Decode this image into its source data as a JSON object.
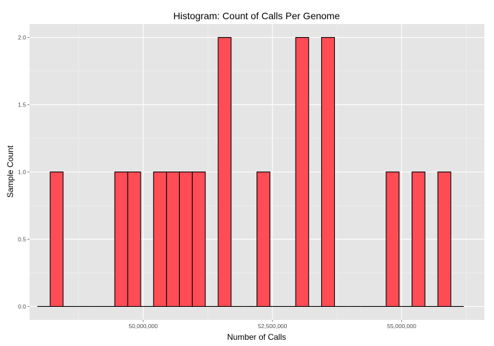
{
  "chart_data": {
    "type": "bar",
    "title": "Histogram: Count of Calls Per Genome",
    "xlabel": "Number of Calls",
    "ylabel": "Sample Count",
    "xlim": [
      47800000,
      56600000
    ],
    "ylim": [
      -0.1,
      2.1
    ],
    "x_ticks": [
      50000000,
      52500000,
      55000000
    ],
    "x_tick_labels": [
      "50,000,000",
      "52,500,000",
      "55,000,000"
    ],
    "y_ticks": [
      0,
      0.5,
      1,
      1.5,
      2
    ],
    "y_tick_labels": [
      "0.0",
      "0.5",
      "1.0",
      "1.5",
      "2.0"
    ],
    "bin_width": 250000,
    "bin_start": 47950000,
    "values": [
      0,
      1,
      0,
      0,
      0,
      0,
      1,
      1,
      0,
      1,
      1,
      1,
      1,
      0,
      2,
      0,
      0,
      1,
      0,
      0,
      2,
      0,
      2,
      0,
      0,
      0,
      0,
      1,
      0,
      1,
      0,
      1,
      0
    ],
    "grid": true,
    "colors": {
      "fill": "#ff4c55",
      "outline": "#000000",
      "panel": "#e5e5e5",
      "grid": "#ffffff"
    }
  }
}
